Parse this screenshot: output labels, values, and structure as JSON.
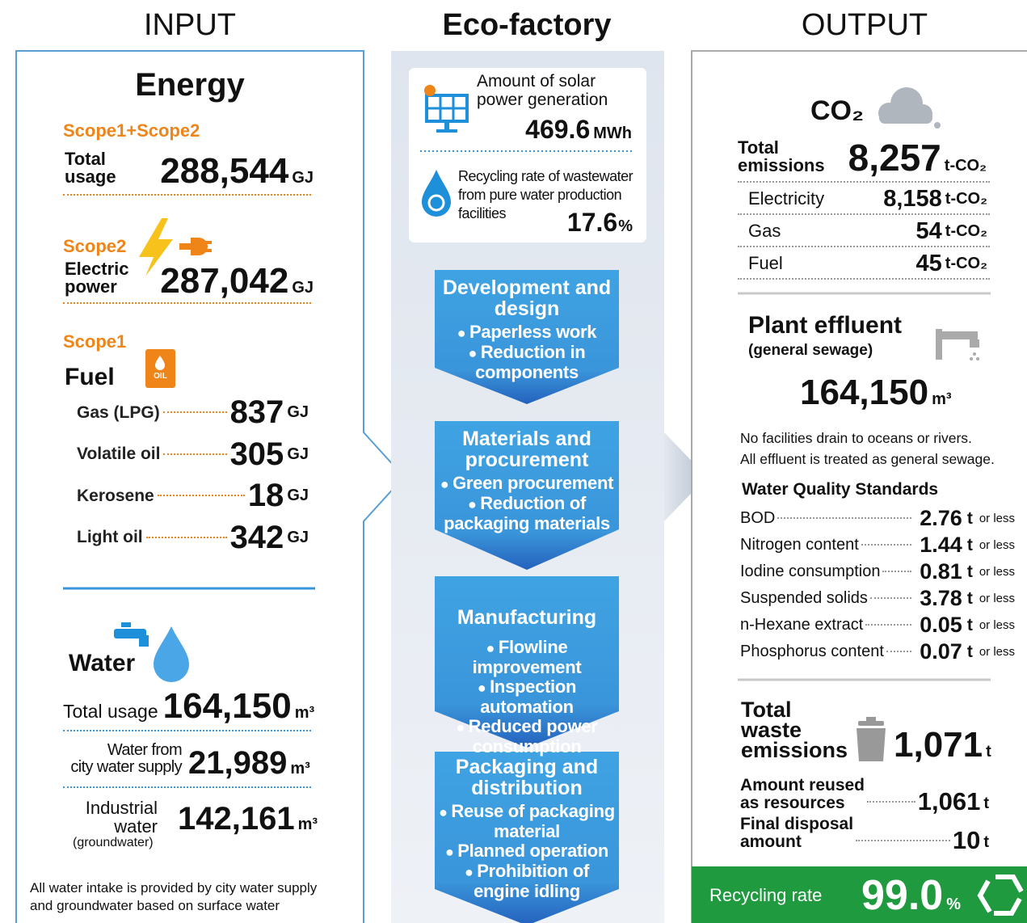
{
  "input": {
    "heading": "INPUT",
    "energy_title": "Energy",
    "scope12": {
      "label": "Scope1+Scope2",
      "name": "Total\nusage",
      "value": "288,544",
      "unit": "GJ"
    },
    "scope2": {
      "label": "Scope2",
      "name": "Electric\npower",
      "value": "287,042",
      "unit": "GJ"
    },
    "scope1": {
      "label": "Scope1",
      "name": "Fuel",
      "icon_text": "OIL",
      "items": [
        {
          "name": "Gas (LPG)",
          "value": "837",
          "unit": "GJ"
        },
        {
          "name": "Volatile oil",
          "value": "305",
          "unit": "GJ"
        },
        {
          "name": "Kerosene",
          "value": "18",
          "unit": "GJ"
        },
        {
          "name": "Light oil",
          "value": "342",
          "unit": "GJ"
        }
      ]
    },
    "water": {
      "title": "Water",
      "total": {
        "name": "Total usage",
        "value": "164,150",
        "unit": "m³"
      },
      "city": {
        "name": "Water from\ncity water supply",
        "value": "21,989",
        "unit": "m³"
      },
      "industrial": {
        "name": "Industrial\nwater",
        "note": "(groundwater)",
        "value": "142,161",
        "unit": "m³"
      },
      "note": "All water intake is provided by city water supply\nand groundwater based on surface water"
    }
  },
  "factory": {
    "heading": "Eco-factory",
    "solar": {
      "label": "Amount of solar\npower generation",
      "value": "469.6",
      "unit": "MWh"
    },
    "recycling": {
      "label": "Recycling rate of wastewater\nfrom pure water production\nfacilities",
      "value": "17.6",
      "unit": "%"
    },
    "stages": [
      {
        "title": "Development and\ndesign",
        "items": [
          "Paperless work",
          "Reduction in\ncomponents"
        ]
      },
      {
        "title": "Materials and\nprocurement",
        "items": [
          "Green procurement",
          "Reduction of\npackaging materials"
        ]
      },
      {
        "title": "Manufacturing",
        "items": [
          "Flowline improvement",
          "Inspection automation",
          "Reduced power\nconsumption"
        ]
      },
      {
        "title": "Packaging and\ndistribution",
        "items": [
          "Reuse of packaging\nmaterial",
          "Planned operation",
          "Prohibition of\nengine idling"
        ]
      }
    ]
  },
  "output": {
    "heading": "OUTPUT",
    "co2": {
      "title": "CO₂",
      "total": {
        "name": "Total\nemissions",
        "value": "8,257",
        "unit": "t-CO₂"
      },
      "items": [
        {
          "name": "Electricity",
          "value": "8,158",
          "unit": "t-CO₂"
        },
        {
          "name": "Gas",
          "value": "54",
          "unit": "t-CO₂"
        },
        {
          "name": "Fuel",
          "value": "45",
          "unit": "t-CO₂"
        }
      ]
    },
    "effluent": {
      "title": "Plant effluent",
      "subtitle": "(general sewage)",
      "value": "164,150",
      "unit": "m³",
      "note": "No facilities drain to oceans or rivers.\nAll effluent is treated as general sewage.",
      "standards_title": "Water Quality Standards",
      "standards": [
        {
          "name": "BOD",
          "value": "2.76",
          "unit": "t",
          "suffix": "or less"
        },
        {
          "name": "Nitrogen content",
          "value": "1.44",
          "unit": "t",
          "suffix": "or less"
        },
        {
          "name": "Iodine consumption",
          "value": "0.81",
          "unit": "t",
          "suffix": "or less"
        },
        {
          "name": "Suspended solids",
          "value": "3.78",
          "unit": "t",
          "suffix": "or less"
        },
        {
          "name": "n-Hexane extract",
          "value": "0.05",
          "unit": "t",
          "suffix": "or less"
        },
        {
          "name": "Phosphorus content",
          "value": "0.07",
          "unit": "t",
          "suffix": "or less"
        }
      ]
    },
    "waste": {
      "title": "Total\nwaste\nemissions",
      "value": "1,071",
      "unit": "t",
      "items": [
        {
          "name": "Amount reused\nas resources",
          "value": "1,061",
          "unit": "t"
        },
        {
          "name": "Final disposal\namount",
          "value": "10",
          "unit": "t"
        }
      ],
      "recycling": {
        "label": "Recycling rate",
        "value": "99.0",
        "unit": "%"
      }
    }
  }
}
